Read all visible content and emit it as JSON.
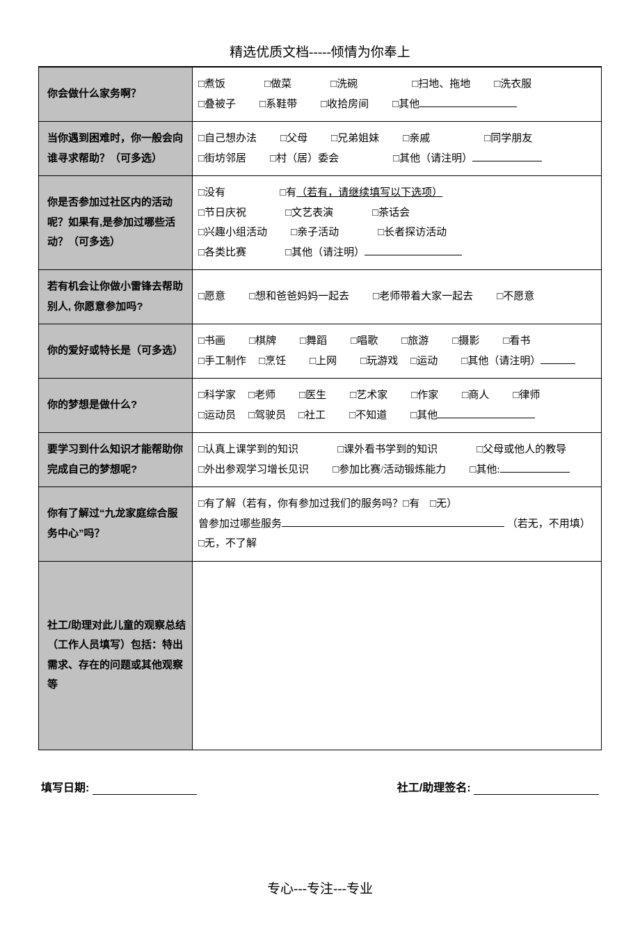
{
  "header": "精选优质文档-----倾情为你奉上",
  "footer": "专心---专注---专业",
  "box": "□",
  "rows": [
    {
      "q": "你会做什么家务啊？",
      "lines": [
        [
          {
            "t": "煮饭",
            "g": "l"
          },
          {
            "t": "做菜",
            "g": "l"
          },
          {
            "t": "洗碗",
            "g": "xl"
          },
          {
            "t": "扫地、拖地",
            "g": "m"
          },
          {
            "t": "洗衣服",
            "g": ""
          }
        ],
        [
          {
            "t": "叠被子",
            "g": "m"
          },
          {
            "t": "系鞋带",
            "g": "m"
          },
          {
            "t": "收拾房间",
            "g": "m"
          },
          {
            "t": "其他",
            "g": "",
            "blank": "mid"
          }
        ]
      ]
    },
    {
      "q": "当你遇到困难时，你一般会向谁寻求帮助？（可多选）",
      "lines": [
        [
          {
            "t": "自己想办法",
            "g": "m"
          },
          {
            "t": "父母",
            "g": "m"
          },
          {
            "t": "兄弟姐妹",
            "g": "m"
          },
          {
            "t": "亲戚",
            "g": "xl"
          },
          {
            "t": "同学朋友",
            "g": ""
          }
        ],
        [
          {
            "t": "街坊邻居",
            "g": "m"
          },
          {
            "t": "村（居）委会",
            "g": "xl"
          },
          {
            "t": "其他（请注明）",
            "g": "",
            "blank": "short"
          }
        ]
      ]
    },
    {
      "q": "你是否参加过社区内的活动呢？如果有,是参加过哪些活动？（可多选）",
      "lines": [
        [
          {
            "t": "没有",
            "g": "xl"
          },
          {
            "raw": "□有 ",
            "g": ""
          },
          {
            "underline": "（若有，请继续填写以下选项）"
          }
        ],
        [
          {
            "t": "节日庆祝",
            "g": "l"
          },
          {
            "t": "文艺表演",
            "g": "l"
          },
          {
            "t": "茶话会",
            "g": ""
          }
        ],
        [
          {
            "t": "兴趣小组活动",
            "g": "m"
          },
          {
            "t": "亲子活动",
            "g": "l"
          },
          {
            "t": "长者探访活动",
            "g": ""
          }
        ],
        [
          {
            "t": "各类比赛",
            "g": "l"
          },
          {
            "t": "其他（请注明）",
            "g": "",
            "blank": "mid"
          }
        ]
      ]
    },
    {
      "q": "若有机会让你做小雷锋去帮助别人, 你愿意参加吗?",
      "lines": [
        [
          {
            "t": "愿意",
            "g": "m"
          },
          {
            "t": "想和爸爸妈妈一起去",
            "g": "m"
          },
          {
            "t": "老师带着大家一起去",
            "g": "m"
          },
          {
            "t": "不愿意",
            "g": ""
          }
        ]
      ]
    },
    {
      "q": "你的爱好或特长是（可多选）",
      "lines": [
        [
          {
            "t": "书画",
            "g": "m"
          },
          {
            "t": "棋牌",
            "g": "m"
          },
          {
            "t": "舞蹈",
            "g": "m"
          },
          {
            "t": "唱歌",
            "g": "m"
          },
          {
            "t": "旅游",
            "g": "m"
          },
          {
            "t": "摄影",
            "g": "m"
          },
          {
            "t": "看书",
            "g": ""
          }
        ],
        [
          {
            "t": "手工制作",
            "g": "s"
          },
          {
            "t": "烹饪",
            "g": "m"
          },
          {
            "t": "上网",
            "g": "m"
          },
          {
            "t": "玩游戏",
            "g": "s"
          },
          {
            "t": "运动",
            "g": "m"
          },
          {
            "t": "其他（请注明）",
            "g": "",
            "blank": "tiny"
          }
        ]
      ]
    },
    {
      "q": "你的梦想是做什么?",
      "lines": [
        [
          {
            "t": "科学家",
            "g": "s"
          },
          {
            "t": "老师",
            "g": "m"
          },
          {
            "t": "医生",
            "g": "m"
          },
          {
            "t": "艺术家",
            "g": "m"
          },
          {
            "t": "作家",
            "g": "m"
          },
          {
            "t": "商人",
            "g": "m"
          },
          {
            "t": "律师",
            "g": ""
          }
        ],
        [
          {
            "t": "运动员",
            "g": "s"
          },
          {
            "t": "驾驶员",
            "g": "s"
          },
          {
            "t": "社工",
            "g": "m"
          },
          {
            "t": "不知道",
            "g": "m"
          },
          {
            "t": "其他",
            "g": "",
            "blank": "mid"
          }
        ]
      ]
    },
    {
      "q": "要学习到什么知识才能帮助你完成自己的梦想呢?",
      "lines": [
        [
          {
            "t": "认真上课学到的知识",
            "g": "l"
          },
          {
            "t": "课外看书学到的知识",
            "g": "l"
          },
          {
            "t": "父母或他人的教导",
            "g": ""
          }
        ],
        [
          {
            "t": "外出参观学习增长见识",
            "g": "m"
          },
          {
            "t": "参加比赛/活动锻炼能力",
            "g": "m"
          },
          {
            "t": "其他:",
            "g": "",
            "blank": "short"
          }
        ]
      ]
    },
    {
      "q": "你有了解过“九龙家庭综合服务中心”吗？",
      "custom": "service_center"
    },
    {
      "q": "社工/助理对此儿童的观察总结（工作人员填写）包括：特出需求、存在的问题或其他观察等",
      "tall": true
    }
  ],
  "service_center": {
    "l1_a": "□有了解（若有，你有参加过我们的服务吗？□有",
    "l1_b": "□无）",
    "l2_a": "曾参加过哪些服务",
    "l2_b": "（若无，不用填）",
    "l3": "□无，不了解"
  },
  "sign": {
    "date_label": "填写日期:",
    "name_label": "社工/助理签名:"
  }
}
